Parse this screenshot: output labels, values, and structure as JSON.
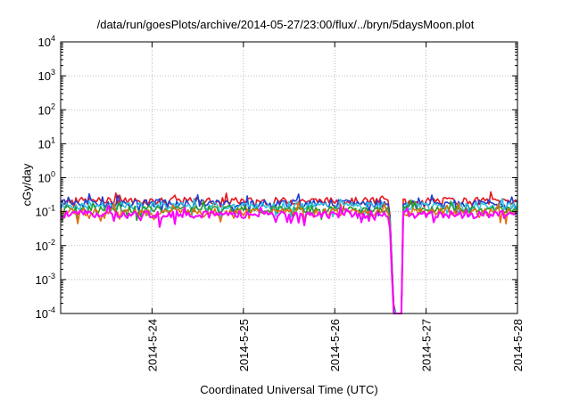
{
  "chart_data": {
    "type": "line",
    "title": "/data/run/goesPlots/archive/2014-05-27/23:00/flux/../bryn/5daysMoon.plot",
    "xlabel": "Coordinated Universal Time (UTC)",
    "ylabel": "cGy/day",
    "yscale": "log",
    "ylim": [
      0.0001,
      10000
    ],
    "y_ticks": [
      {
        "base": "10",
        "exp": "4",
        "value": 10000
      },
      {
        "base": "10",
        "exp": "3",
        "value": 1000
      },
      {
        "base": "10",
        "exp": "2",
        "value": 100
      },
      {
        "base": "10",
        "exp": "1",
        "value": 10
      },
      {
        "base": "10",
        "exp": "0",
        "value": 1
      },
      {
        "base": "10",
        "exp": "-1",
        "value": 0.1
      },
      {
        "base": "10",
        "exp": "-2",
        "value": 0.01
      },
      {
        "base": "10",
        "exp": "-3",
        "value": 0.001
      },
      {
        "base": "10",
        "exp": "-4",
        "value": 0.0001
      }
    ],
    "xlim": [
      "2014-05-23 00:00",
      "2014-05-28 00:00"
    ],
    "x_ticks": [
      "2014-5-24",
      "2014-5-25",
      "2014-5-26",
      "2014-5-27",
      "2014-5-28"
    ],
    "grid": true,
    "dropout": {
      "start": "2014-05-26 14:20",
      "end": "2014-05-26 17:50"
    },
    "series": [
      {
        "color": "#e8161c",
        "baseline": 0.21
      },
      {
        "color": "#1f3fd1",
        "baseline": 0.18
      },
      {
        "color": "#2ec4e0",
        "baseline": 0.15
      },
      {
        "color": "#2a9a2a",
        "baseline": 0.12
      },
      {
        "color": "#e07010",
        "baseline": 0.1
      },
      {
        "color": "#ff00ff",
        "baseline": 0.085
      }
    ]
  }
}
